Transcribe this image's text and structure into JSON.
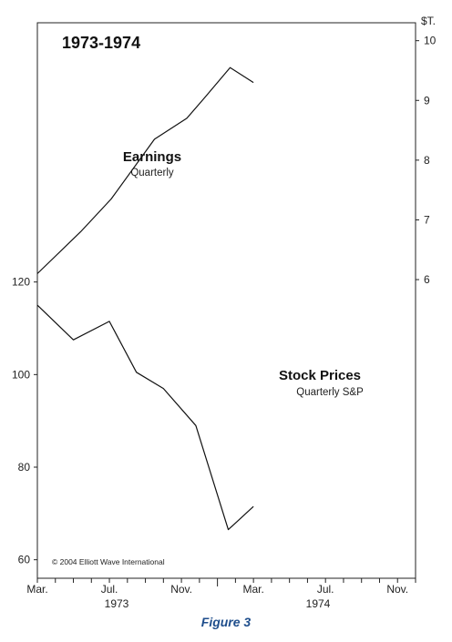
{
  "chart_data": {
    "type": "line",
    "title": "1973-1974",
    "caption": "Figure 3",
    "copyright": "© 2004 Elliott Wave International",
    "x_ticks": [
      "Mar.",
      "Jul.",
      "Nov.",
      "Mar.",
      "Jul.",
      "Nov."
    ],
    "years": [
      "1973",
      "1974"
    ],
    "left_axis": {
      "ticks": [
        "60",
        "80",
        "100",
        "120"
      ],
      "ylim": [
        56,
        176
      ]
    },
    "right_axis": {
      "unit_label": "$T.",
      "ticks": [
        "6",
        "7",
        "8",
        "9",
        "10"
      ],
      "ylim": [
        1.0,
        10.3
      ]
    },
    "series": [
      {
        "name": "Earnings",
        "subtitle": "Quarterly",
        "axis": "right",
        "x": [
          0,
          2.4,
          4.1,
          6.5,
          8.3,
          9.3,
          10.7,
          12.0
        ],
        "values": [
          6.1,
          6.8,
          7.35,
          8.35,
          8.7,
          9.05,
          9.55,
          9.3
        ]
      },
      {
        "name": "Stock Prices",
        "subtitle": "Quarterly S&P",
        "axis": "left",
        "x": [
          0,
          2.0,
          4.0,
          5.5,
          7.0,
          8.8,
          10.6,
          12.0
        ],
        "values": [
          115,
          107.5,
          111.5,
          100.5,
          97,
          89,
          66.5,
          71.5
        ]
      }
    ]
  }
}
